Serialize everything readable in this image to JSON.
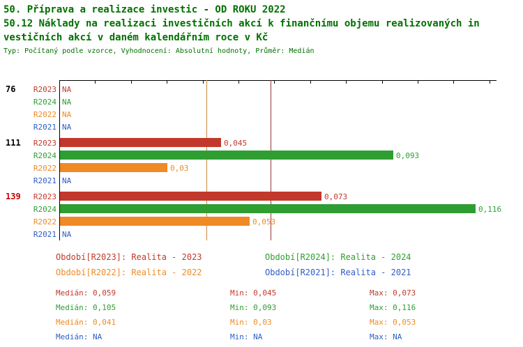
{
  "header": {
    "title_line1": "50. Příprava a realizace investic - OD ROKU 2022",
    "title_line2": "50.12 Náklady na realizaci investičních akcí k finančnímu objemu realizovaných in",
    "title_line3": "vestičních akcí v daném kalendářním roce v Kč",
    "meta": "Typ: Počítaný podle vzorce, Vyhodnocení: Absolutní hodnoty, Průměr: Medián"
  },
  "colors": {
    "title_green": "#007000",
    "r2023": "#c2392b",
    "r2024": "#2f9e32",
    "r2022": "#ef8a24",
    "r2021": "#2e5cc5",
    "group_highlight": "#cc0000",
    "group_normal": "#000000",
    "axis": "#000000",
    "median_line_r2023": "#993333",
    "median_line_r2022": "#cc8840"
  },
  "chart_data": {
    "type": "bar",
    "orientation": "horizontal",
    "title": "50.12 Náklady na realizaci investičních akcí k finančnímu objemu realizovaných investičních akcí v daném kalendářním roce v Kč",
    "xlabel": "",
    "ylabel": "",
    "xlim": [
      0,
      0.122
    ],
    "grid": false,
    "value_format": "decimal-comma",
    "categories": [
      "76",
      "111",
      "139"
    ],
    "highlighted_category": "139",
    "series": [
      {
        "name": "R2023",
        "color_key": "r2023",
        "values": [
          null,
          0.045,
          0.073
        ],
        "labels": [
          "NA",
          "0,045",
          "0,073"
        ]
      },
      {
        "name": "R2024",
        "color_key": "r2024",
        "values": [
          null,
          0.093,
          0.116
        ],
        "labels": [
          "NA",
          "0,093",
          "0,116"
        ]
      },
      {
        "name": "R2022",
        "color_key": "r2022",
        "values": [
          null,
          0.03,
          0.053
        ],
        "labels": [
          "NA",
          "0,03",
          "0,053"
        ]
      },
      {
        "name": "R2021",
        "color_key": "r2021",
        "values": [
          null,
          null,
          null
        ],
        "labels": [
          "NA",
          "NA",
          "NA"
        ]
      }
    ],
    "median_lines": [
      {
        "series": "R2023",
        "value": 0.059,
        "color_key": "median_line_r2023"
      },
      {
        "series": "R2022",
        "value": 0.041,
        "color_key": "median_line_r2022"
      }
    ]
  },
  "legend": [
    {
      "label": "Období[R2023]: Realita - 2023",
      "color_key": "r2023"
    },
    {
      "label": "Období[R2024]: Realita - 2024",
      "color_key": "r2024"
    },
    {
      "label": "Období[R2022]: Realita - 2022",
      "color_key": "r2022"
    },
    {
      "label": "Období[R2021]: Realita - 2021",
      "color_key": "r2021"
    }
  ],
  "stats": [
    {
      "median": "Medián: 0,059",
      "min": "Min: 0,045",
      "max": "Max: 0,073",
      "color_key": "r2023"
    },
    {
      "median": "Medián: 0,105",
      "min": "Min: 0,093",
      "max": "Max: 0,116",
      "color_key": "r2024"
    },
    {
      "median": "Medián: 0,041",
      "min": "Min: 0,03",
      "max": "Max: 0,053",
      "color_key": "r2022"
    },
    {
      "median": "Medián: NA",
      "min": "Min: NA",
      "max": "Max: NA",
      "color_key": "r2021"
    }
  ]
}
